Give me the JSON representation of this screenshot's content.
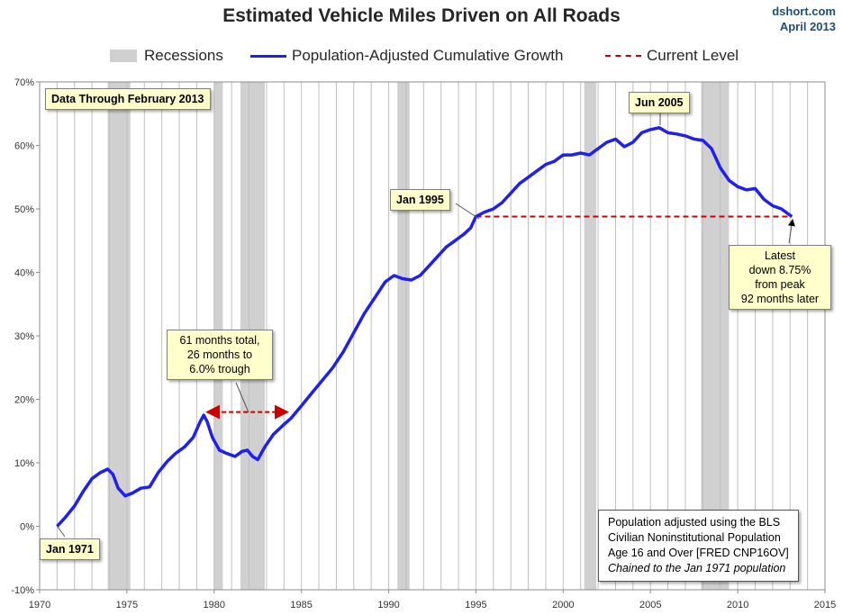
{
  "title": "Estimated Vehicle Miles Driven on All Roads",
  "source": {
    "line1": "dshort.com",
    "line2": "April 2013"
  },
  "legend": {
    "recessions": "Recessions",
    "series": "Population-Adjusted Cumulative Growth",
    "current": "Current Level"
  },
  "colors": {
    "series": "#1f1ff2",
    "current": "#cc0000",
    "recession": "#d0d0d0",
    "grid": "#bfbfbf"
  },
  "annotations": {
    "data_through": "Data Through February 2013",
    "jan1971": "Jan 1971",
    "jan1995": "Jan 1995",
    "jun2005": "Jun 2005",
    "trough": [
      "61 months total,",
      "26 months to",
      "6.0% trough"
    ],
    "latest": [
      "Latest",
      "down 8.75%",
      "from peak",
      "92 months later"
    ]
  },
  "note": {
    "lines": [
      "Population adjusted using the BLS",
      "Civilian Noninstitutional Population",
      "Age 16 and Over  [FRED CNP16OV]"
    ],
    "italic_line": "Chained to the Jan 1971 population"
  },
  "chart_data": {
    "type": "line",
    "title": "Estimated Vehicle Miles Driven on All Roads",
    "xlim": [
      1970,
      2015
    ],
    "ylim": [
      -10,
      70
    ],
    "x_ticks": [
      1970,
      1975,
      1980,
      1985,
      1990,
      1995,
      2000,
      2005,
      2010,
      2015
    ],
    "y_ticks": [
      -10,
      0,
      10,
      20,
      30,
      40,
      50,
      60,
      70
    ],
    "y_tick_labels": [
      "-10%",
      "0%",
      "10%",
      "20%",
      "30%",
      "40%",
      "50%",
      "60%",
      "70%"
    ],
    "grid": "vertical lines each year",
    "legend_position": "top",
    "recessions": [
      [
        1973.9,
        1975.2
      ],
      [
        1980.0,
        1980.5
      ],
      [
        1981.5,
        1982.9
      ],
      [
        1990.5,
        1991.2
      ],
      [
        2001.2,
        2001.9
      ],
      [
        2007.9,
        2009.5
      ]
    ],
    "current_level": {
      "value": 48.8,
      "x_start": 1995.0,
      "x_end": 2013.1
    },
    "recession_gap_arrow": {
      "x_start": 1979.4,
      "x_end": 1984.4,
      "y": 18.0
    },
    "series": [
      {
        "name": "Population-Adjusted Cumulative Growth",
        "x": [
          1971.0,
          1971.5,
          1972.0,
          1972.5,
          1973.0,
          1973.5,
          1973.9,
          1974.2,
          1974.5,
          1974.9,
          1975.3,
          1975.8,
          1976.3,
          1976.8,
          1977.3,
          1977.8,
          1978.3,
          1978.8,
          1979.2,
          1979.4,
          1979.6,
          1979.9,
          1980.3,
          1980.7,
          1981.2,
          1981.6,
          1981.9,
          1982.2,
          1982.5,
          1982.9,
          1983.4,
          1983.9,
          1984.4,
          1985.0,
          1985.6,
          1986.2,
          1986.8,
          1987.4,
          1988.0,
          1988.6,
          1989.2,
          1989.8,
          1990.3,
          1990.8,
          1991.3,
          1991.8,
          1992.3,
          1992.8,
          1993.3,
          1993.8,
          1994.3,
          1994.7,
          1995.0,
          1995.5,
          1996.0,
          1996.5,
          1997.0,
          1997.5,
          1998.0,
          1998.5,
          1999.0,
          1999.5,
          2000.0,
          2000.5,
          2001.0,
          2001.5,
          2002.0,
          2002.5,
          2003.0,
          2003.5,
          2004.0,
          2004.5,
          2005.0,
          2005.5,
          2006.0,
          2006.5,
          2007.0,
          2007.5,
          2008.0,
          2008.5,
          2009.0,
          2009.5,
          2010.0,
          2010.5,
          2011.0,
          2011.5,
          2012.0,
          2012.5,
          2013.1
        ],
        "values": [
          0.0,
          1.5,
          3.2,
          5.5,
          7.5,
          8.5,
          9.0,
          8.2,
          6.0,
          4.8,
          5.2,
          6.0,
          6.2,
          8.5,
          10.2,
          11.5,
          12.5,
          14.0,
          16.5,
          17.5,
          16.5,
          14.0,
          12.0,
          11.5,
          11.0,
          11.8,
          12.0,
          11.0,
          10.5,
          12.5,
          14.5,
          15.8,
          17.0,
          19.0,
          21.0,
          23.0,
          25.0,
          27.5,
          30.5,
          33.5,
          36.0,
          38.5,
          39.5,
          39.0,
          38.8,
          39.5,
          41.0,
          42.5,
          44.0,
          45.0,
          46.0,
          47.0,
          48.8,
          49.5,
          50.0,
          51.0,
          52.5,
          54.0,
          55.0,
          56.0,
          57.0,
          57.5,
          58.5,
          58.5,
          58.8,
          58.5,
          59.5,
          60.5,
          61.0,
          59.8,
          60.5,
          62.0,
          62.5,
          62.8,
          62.0,
          61.8,
          61.5,
          61.0,
          60.8,
          59.5,
          56.5,
          54.5,
          53.5,
          53.0,
          53.2,
          51.5,
          50.5,
          50.0,
          48.8
        ]
      }
    ]
  }
}
